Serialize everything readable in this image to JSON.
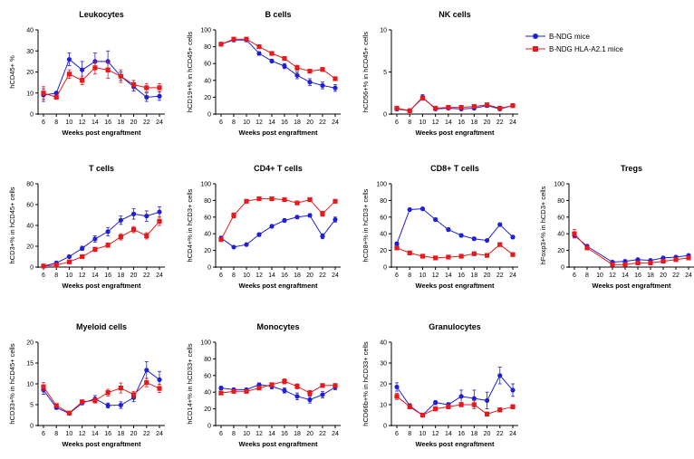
{
  "colors": {
    "series_0": "#1f1fd4",
    "series_1": "#e41a1c",
    "axis": "#000000"
  },
  "legend": {
    "placement": "top-right",
    "items": [
      {
        "label": "B-NDG mice",
        "marker": "circle",
        "color": "#1f1fd4"
      },
      {
        "label": "B-NDG HLA-A2.1 mice",
        "marker": "square",
        "color": "#e41a1c"
      }
    ]
  },
  "chart_data": [
    {
      "type": "line",
      "title": "Leukocytes",
      "ylabel": "hCD45+ %",
      "xlabel": "Weeks post engraftment",
      "x": [
        6,
        8,
        10,
        12,
        14,
        16,
        18,
        20,
        22,
        24
      ],
      "ylim": [
        0,
        40
      ],
      "yticks": [
        0,
        10,
        20,
        30,
        40
      ],
      "series": [
        {
          "name": "B-NDG mice",
          "values": [
            9,
            10,
            26,
            21,
            25,
            25,
            18,
            13,
            8,
            8.5
          ],
          "err": [
            3,
            0.5,
            3,
            4,
            4,
            5,
            2,
            2,
            2,
            2
          ]
        },
        {
          "name": "B-NDG HLA-A2.1 mice",
          "values": [
            10,
            8,
            19,
            16,
            22,
            21,
            18,
            14,
            12.5,
            12.5
          ],
          "err": [
            3,
            1,
            2,
            2,
            3,
            4,
            3,
            2,
            2,
            2
          ]
        }
      ]
    },
    {
      "type": "line",
      "title": "B cells",
      "ylabel": "hCD19+% in hCD45+ cells",
      "xlabel": "Weeks post engraftment",
      "x": [
        6,
        8,
        10,
        12,
        14,
        16,
        18,
        20,
        22,
        24
      ],
      "ylim": [
        0,
        100
      ],
      "yticks": [
        0,
        20,
        40,
        60,
        80,
        100
      ],
      "series": [
        {
          "name": "B-NDG mice",
          "values": [
            83,
            88,
            88,
            72,
            63,
            57,
            46,
            38,
            34,
            31
          ],
          "err": [
            2,
            2,
            2,
            2,
            2,
            3,
            4,
            4,
            4,
            4
          ]
        },
        {
          "name": "B-NDG HLA-A2.1 mice",
          "values": [
            83,
            89,
            89,
            80,
            72,
            66,
            55,
            51,
            53,
            42
          ],
          "err": [
            2,
            1,
            1,
            1,
            2,
            2,
            3,
            2,
            2,
            2
          ]
        }
      ]
    },
    {
      "type": "line",
      "title": "NK  cells",
      "ylabel": "hCD56+% in hCD45+ cells",
      "xlabel": "Weeks post engraftment",
      "x": [
        6,
        8,
        10,
        12,
        14,
        16,
        18,
        20,
        22,
        24
      ],
      "ylim": [
        0,
        10
      ],
      "yticks": [
        0,
        5,
        10
      ],
      "series": [
        {
          "name": "B-NDG mice",
          "values": [
            0.6,
            0.4,
            2.0,
            0.6,
            0.7,
            0.6,
            0.7,
            1.0,
            0.6,
            1.0
          ],
          "err": [
            0.2,
            0.1,
            0.3,
            0.1,
            0.1,
            0.1,
            0.1,
            0.2,
            0.1,
            0.2
          ]
        },
        {
          "name": "B-NDG HLA-A2.1 mice",
          "values": [
            0.7,
            0.4,
            1.9,
            0.7,
            0.8,
            0.8,
            0.9,
            1.1,
            0.7,
            1.0
          ],
          "err": [
            0.2,
            0.1,
            0.2,
            0.1,
            0.1,
            0.1,
            0.2,
            0.2,
            0.1,
            0.2
          ]
        }
      ]
    },
    {
      "type": "line",
      "title": "T cells",
      "ylabel": "hCD3+% in hCD45+ cells",
      "xlabel": "Weeks post engraftment",
      "x": [
        6,
        8,
        10,
        12,
        14,
        16,
        18,
        20,
        22,
        24
      ],
      "ylim": [
        0,
        80
      ],
      "yticks": [
        0,
        20,
        40,
        60,
        80
      ],
      "series": [
        {
          "name": "B-NDG mice",
          "values": [
            1,
            4,
            10,
            18,
            27,
            34,
            45,
            51,
            49,
            53
          ],
          "err": [
            0.5,
            1,
            1,
            2,
            3,
            4,
            4,
            5,
            5,
            5
          ]
        },
        {
          "name": "B-NDG HLA-A2.1 mice",
          "values": [
            1,
            2,
            5,
            10,
            17,
            21,
            29,
            36,
            30,
            44
          ],
          "err": [
            0.5,
            0.5,
            1,
            1,
            2,
            2,
            3,
            3,
            3,
            4
          ]
        }
      ]
    },
    {
      "type": "line",
      "title": "CD4+ T cells",
      "ylabel": "hCD4+% in hCD3+ cells",
      "xlabel": "Weeks post engraftment",
      "x": [
        6,
        8,
        10,
        12,
        14,
        16,
        18,
        20,
        22,
        24
      ],
      "ylim": [
        0,
        100
      ],
      "yticks": [
        0,
        20,
        40,
        60,
        80,
        100
      ],
      "series": [
        {
          "name": "B-NDG mice",
          "values": [
            35,
            24,
            27,
            39,
            49,
            56,
            60,
            62,
            37,
            57
          ],
          "err": [
            2,
            1,
            1,
            2,
            2,
            2,
            2,
            2,
            3,
            3
          ]
        },
        {
          "name": "B-NDG HLA-A2.1 mice",
          "values": [
            33,
            62,
            79,
            82,
            82,
            81,
            77,
            81,
            64,
            79
          ],
          "err": [
            2,
            3,
            2,
            1,
            1,
            1,
            2,
            1,
            3,
            2
          ]
        }
      ]
    },
    {
      "type": "line",
      "title": "CD8+ T cells",
      "ylabel": "hCD8+% in hCD3+ cells",
      "xlabel": "Weeks post engraftment",
      "x": [
        6,
        8,
        10,
        12,
        14,
        16,
        18,
        20,
        22,
        24
      ],
      "ylim": [
        0,
        100
      ],
      "yticks": [
        0,
        20,
        40,
        60,
        80,
        100
      ],
      "series": [
        {
          "name": "B-NDG mice",
          "values": [
            28,
            69,
            70,
            57,
            45,
            38,
            34,
            32,
            51,
            36
          ],
          "err": [
            2,
            1,
            1,
            2,
            2,
            2,
            2,
            1,
            2,
            2
          ]
        },
        {
          "name": "B-NDG HLA-A2.1 mice",
          "values": [
            23,
            17,
            13,
            11,
            12,
            13,
            16,
            14,
            27,
            15
          ],
          "err": [
            2,
            1,
            1,
            1,
            1,
            1,
            2,
            1,
            2,
            2
          ]
        }
      ]
    },
    {
      "type": "line",
      "title": "Tregs",
      "ylabel": "hFoxp3+% in hCD3+ cells",
      "xlabel": "Weeks post engraftment",
      "x": [
        6,
        8,
        10,
        12,
        14,
        16,
        18,
        20,
        22,
        24
      ],
      "ylim": [
        0,
        100
      ],
      "yticks": [
        0,
        20,
        40,
        60,
        80,
        100
      ],
      "series": [
        {
          "name": "B-NDG mice",
          "values": [
            38,
            25,
            6,
            7,
            9,
            8,
            11,
            12,
            14
          ],
          "x": [
            6,
            8,
            12,
            14,
            16,
            18,
            20,
            22,
            24
          ],
          "err": [
            3,
            2,
            1,
            1,
            1,
            1,
            1,
            1,
            1
          ]
        },
        {
          "name": "B-NDG HLA-A2.1 mice",
          "values": [
            40,
            23,
            3,
            3,
            5,
            5,
            7,
            9,
            11
          ],
          "x": [
            6,
            8,
            12,
            14,
            16,
            18,
            20,
            22,
            24
          ],
          "err": [
            5,
            2,
            1,
            1,
            1,
            1,
            1,
            1,
            1
          ]
        }
      ]
    },
    {
      "type": "line",
      "title": "Myeloid cells",
      "ylabel": "hCD33+% in hCD45+ cells",
      "xlabel": "Weeks post engraftment",
      "x": [
        6,
        8,
        10,
        12,
        14,
        16,
        18,
        20,
        22,
        24
      ],
      "ylim": [
        0,
        20
      ],
      "yticks": [
        0,
        5,
        10,
        15,
        20
      ],
      "series": [
        {
          "name": "B-NDG mice",
          "values": [
            8.5,
            4.3,
            2.9,
            5.4,
            6.4,
            4.8,
            4.9,
            6.7,
            13.3,
            11.0
          ],
          "err": [
            1,
            0.4,
            0.3,
            0.4,
            0.8,
            0.6,
            0.8,
            1,
            2,
            2
          ]
        },
        {
          "name": "B-NDG HLA-A2.1 mice",
          "values": [
            9.3,
            4.8,
            3.0,
            5.7,
            6.0,
            7.9,
            9.0,
            7.4,
            10.3,
            8.9
          ],
          "err": [
            1,
            0.4,
            0.3,
            0.4,
            0.6,
            0.8,
            1.2,
            0.8,
            1,
            1
          ]
        }
      ]
    },
    {
      "type": "line",
      "title": "Monocytes",
      "ylabel": "hCD14+% in hCD33+ cells",
      "xlabel": "Weeks post engraftment",
      "x": [
        6,
        8,
        10,
        12,
        14,
        16,
        18,
        20,
        22,
        24
      ],
      "ylim": [
        0,
        100
      ],
      "yticks": [
        0,
        20,
        40,
        60,
        80,
        100
      ],
      "series": [
        {
          "name": "B-NDG mice",
          "values": [
            45,
            43,
            43,
            49,
            47,
            42,
            35,
            31,
            37,
            46
          ],
          "err": [
            2,
            2,
            2,
            2,
            3,
            3,
            4,
            4,
            4,
            3
          ]
        },
        {
          "name": "B-NDG HLA-A2.1 mice",
          "values": [
            39,
            41,
            41,
            45,
            49,
            53,
            47,
            39,
            48,
            48
          ],
          "err": [
            2,
            2,
            2,
            2,
            2,
            3,
            3,
            3,
            2,
            2
          ]
        }
      ]
    },
    {
      "type": "line",
      "title": "Granulocytes",
      "ylabel": "hCD66b+% in hCD33+ cells",
      "xlabel": "Weeks post engraftment",
      "x": [
        6,
        8,
        10,
        12,
        14,
        16,
        18,
        20,
        22,
        24
      ],
      "ylim": [
        0,
        40
      ],
      "yticks": [
        0,
        10,
        20,
        30,
        40
      ],
      "series": [
        {
          "name": "B-NDG mice",
          "values": [
            18.5,
            9.5,
            5,
            11,
            10,
            14,
            13,
            12,
            24,
            17
          ],
          "err": [
            2,
            1,
            0.5,
            1,
            1,
            3,
            4,
            4,
            4,
            3
          ]
        },
        {
          "name": "B-NDG HLA-A2.1 mice",
          "values": [
            14,
            9,
            5,
            8,
            9,
            10,
            10,
            5.5,
            7.5,
            9
          ],
          "err": [
            1.5,
            1,
            0.5,
            1,
            1,
            1,
            2,
            1,
            1,
            1
          ]
        }
      ]
    }
  ]
}
